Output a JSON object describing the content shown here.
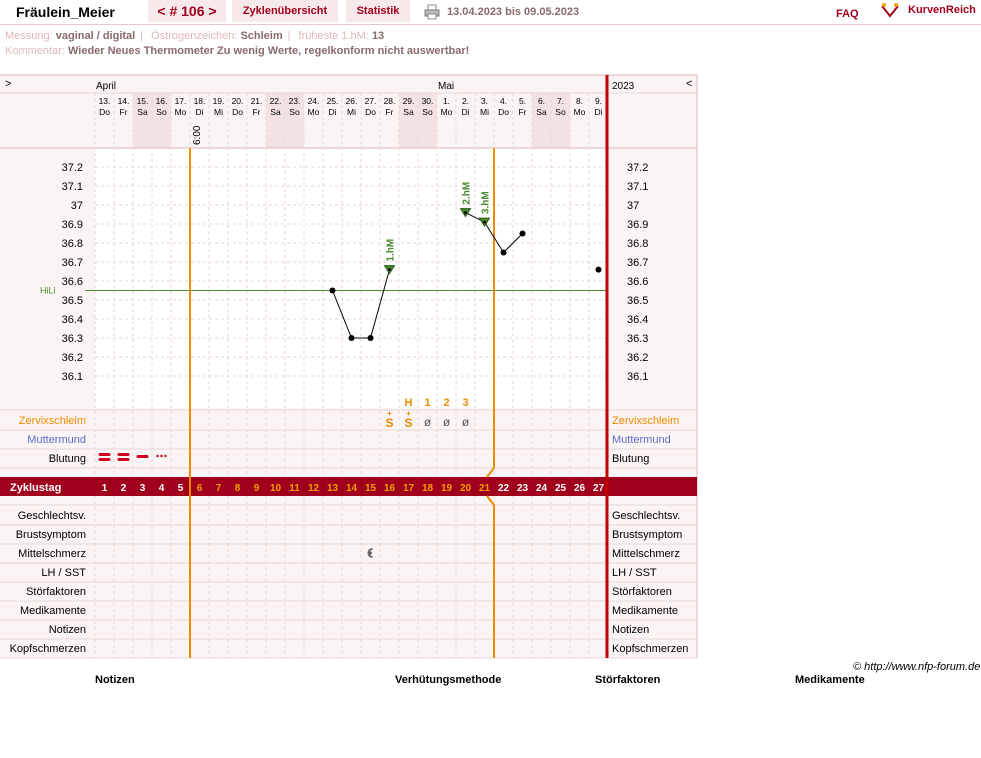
{
  "header": {
    "user": "Fräulein_Meier",
    "cycle_btn": "< # 106 >",
    "overview_tab": "Zyklenübersicht",
    "stats_tab": "Statistik",
    "date_range": "13.04.2023 bis 09.05.2023",
    "faq": "FAQ",
    "brand": "KurvenReich",
    "icons": [
      "printer-icon",
      "kurvenreich-logo-icon"
    ]
  },
  "info": {
    "messung_label": "Messung:",
    "messung": "vaginal / digital",
    "oestrogen_label": "Östrogenzeichen:",
    "oestrogen": "Schleim",
    "fruehe_label": "früheste 1.hM:",
    "fruehe": "13",
    "kommentar_label": "Kommentar:",
    "kommentar": "Wieder Neues Thermometer Zu wenig Werte, regelkonform nicht auswertbar!"
  },
  "chart_data": {
    "type": "line",
    "nav_prev": ">",
    "nav_next": "<",
    "month_april": "April",
    "month_mai": "Mai",
    "year": "2023",
    "days": [
      {
        "d": "13.",
        "w": "Do"
      },
      {
        "d": "14.",
        "w": "Fr"
      },
      {
        "d": "15.",
        "w": "Sa",
        "we": true
      },
      {
        "d": "16.",
        "w": "So",
        "we": true
      },
      {
        "d": "17.",
        "w": "Mo"
      },
      {
        "d": "18.",
        "w": "Di"
      },
      {
        "d": "19.",
        "w": "Mi"
      },
      {
        "d": "20.",
        "w": "Do"
      },
      {
        "d": "21.",
        "w": "Fr"
      },
      {
        "d": "22.",
        "w": "Sa",
        "we": true
      },
      {
        "d": "23.",
        "w": "So",
        "we": true
      },
      {
        "d": "24.",
        "w": "Mo"
      },
      {
        "d": "25.",
        "w": "Di"
      },
      {
        "d": "26.",
        "w": "Mi"
      },
      {
        "d": "27.",
        "w": "Do"
      },
      {
        "d": "28.",
        "w": "Fr"
      },
      {
        "d": "29.",
        "w": "Sa",
        "we": true
      },
      {
        "d": "30.",
        "w": "So",
        "we": true
      },
      {
        "d": "1.",
        "w": "Mo"
      },
      {
        "d": "2.",
        "w": "Di"
      },
      {
        "d": "3.",
        "w": "Mi"
      },
      {
        "d": "4.",
        "w": "Do"
      },
      {
        "d": "5.",
        "w": "Fr"
      },
      {
        "d": "6.",
        "w": "Sa",
        "we": true
      },
      {
        "d": "7.",
        "w": "So",
        "we": true
      },
      {
        "d": "8.",
        "w": "Mo"
      },
      {
        "d": "9.",
        "w": "Di"
      }
    ],
    "time_label": "6:00",
    "y_ticks": [
      "37.2",
      "37.1",
      "37",
      "36.9",
      "36.8",
      "36.7",
      "36.6",
      "36.5",
      "36.4",
      "36.3",
      "36.2",
      "36.1"
    ],
    "ylim": [
      36.0,
      37.3
    ],
    "hili_label": "HiLi",
    "hili_value": 36.55,
    "temps": [
      {
        "cd": 13,
        "t": 36.55
      },
      {
        "cd": 14,
        "t": 36.3
      },
      {
        "cd": 15,
        "t": 36.3
      },
      {
        "cd": 16,
        "t": 36.66,
        "mark": "1.hM"
      },
      {
        "cd": 20,
        "t": 36.96,
        "mark": "2.hM"
      },
      {
        "cd": 21,
        "t": 36.91,
        "mark": "3.hM"
      },
      {
        "cd": 22,
        "t": 36.75
      },
      {
        "cd": 23,
        "t": 36.85
      },
      {
        "cd": 27,
        "t": 36.66,
        "isolated": true
      }
    ],
    "orange_after_cd": [
      5,
      21
    ],
    "hm_letters": [
      {
        "cd": 17,
        "txt": "H"
      },
      {
        "cd": 18,
        "txt": "1"
      },
      {
        "cd": 19,
        "txt": "2"
      },
      {
        "cd": 20,
        "txt": "3"
      }
    ],
    "mucus": [
      {
        "cd": 16,
        "txt": "S+"
      },
      {
        "cd": 17,
        "txt": "S+"
      },
      {
        "cd": 18,
        "txt": "ø"
      },
      {
        "cd": 19,
        "txt": "ø"
      },
      {
        "cd": 20,
        "txt": "ø"
      }
    ],
    "bleeding": [
      {
        "cd": 1,
        "level": "heavy"
      },
      {
        "cd": 2,
        "level": "heavy"
      },
      {
        "cd": 3,
        "level": "medium"
      },
      {
        "cd": 4,
        "level": "spotting"
      }
    ],
    "zyklustag_label": "Zyklustag",
    "rows_top": [
      "Zervixschleim",
      "Muttermund",
      "Blutung"
    ],
    "rows_bottom": [
      "Geschlechtsv.",
      "Brustsymptom",
      "Mittelschmerz",
      "LH / SST",
      "Störfaktoren",
      "Medikamente",
      "Notizen",
      "Kopfschmerzen"
    ],
    "mittelschmerz_cd": 15,
    "colors": {
      "accent": "#a0001c",
      "orange": "#f08a00",
      "green": "#4a8a30",
      "weekend": "#f2e2e2",
      "grid": "#e8d6d6",
      "mutter": "#5b6ec9"
    }
  },
  "footer": {
    "copyright": "© http://www.nfp-forum.de",
    "notizen": "Notizen",
    "verhuetung": "Verhütungsmethode",
    "stoer": "Störfaktoren",
    "medikamente": "Medikamente"
  }
}
